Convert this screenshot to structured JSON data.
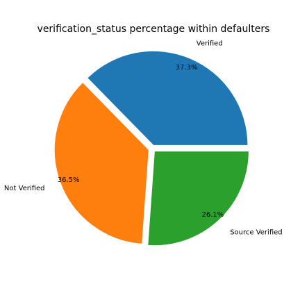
{
  "chart_data": {
    "type": "pie",
    "title": "verification_status percentage within defaulters",
    "labels": [
      "Verified",
      "Not Verified",
      "Source Verified"
    ],
    "values": [
      37.3,
      36.5,
      26.1
    ],
    "percent_labels": [
      "37.3%",
      "36.5%",
      "26.1%"
    ],
    "colors": [
      "#1f77b4",
      "#ff7f0e",
      "#2ca02c"
    ],
    "start_angle_deg": 0,
    "direction": "counterclockwise",
    "exploded": true,
    "legend": "none"
  }
}
